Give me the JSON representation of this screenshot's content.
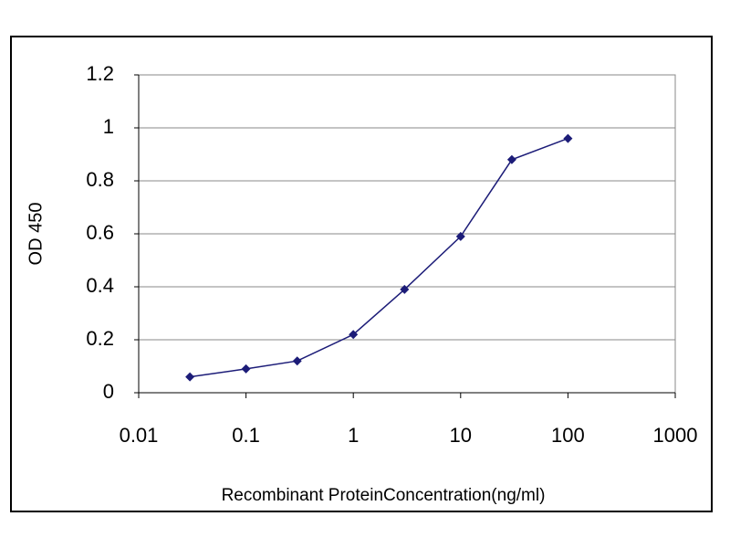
{
  "chart_data": {
    "type": "line",
    "xlabel": "Recombinant ProteinConcentration(ng/ml)",
    "ylabel": "OD 450",
    "x": [
      0.03,
      0.1,
      0.3,
      1,
      3,
      10,
      30,
      100
    ],
    "values": [
      0.06,
      0.09,
      0.12,
      0.22,
      0.39,
      0.59,
      0.88,
      0.96
    ],
    "color": "#1c1c78",
    "xscale": "log",
    "xlim": [
      0.01,
      1000
    ],
    "xticks": [
      0.01,
      0.1,
      1,
      10,
      100,
      1000
    ],
    "ylim": [
      0,
      1.2
    ],
    "yticks": [
      0,
      0.2,
      0.4,
      0.6,
      0.8,
      1,
      1.2
    ],
    "grid": true
  }
}
